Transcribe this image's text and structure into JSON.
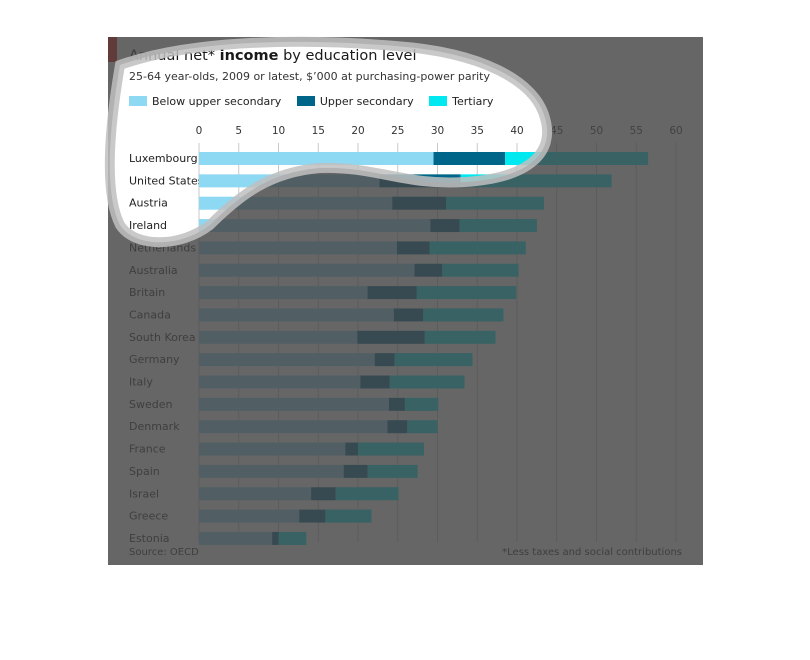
{
  "chart_data": {
    "type": "bar",
    "stacked": true,
    "orientation": "horizontal",
    "title_plain": "Annual net* ",
    "title_bold": "income",
    "title_rest": " by education level",
    "subtitle": "25-64 year-olds, 2009 or latest, $’000 at purchasing-power parity",
    "categories": [
      "Luxembourg",
      "United States",
      "Austria",
      "Ireland",
      "Netherlands",
      "Australia",
      "Britain",
      "Canada",
      "South Korea",
      "Germany",
      "Italy",
      "Sweden",
      "Denmark",
      "France",
      "Spain",
      "Israel",
      "Greece",
      "Estonia"
    ],
    "series": [
      {
        "name": "Below upper secondary",
        "color": "#8dd8f3",
        "values": [
          29.5,
          22.7,
          24.3,
          29.1,
          24.9,
          27.1,
          21.2,
          24.5,
          19.9,
          22.1,
          20.3,
          23.9,
          23.7,
          18.4,
          18.2,
          14.1,
          12.6,
          9.2
        ]
      },
      {
        "name": "Upper secondary",
        "color": "#006689",
        "values": [
          9.0,
          10.2,
          6.8,
          3.7,
          4.1,
          3.5,
          6.2,
          3.7,
          8.5,
          2.5,
          3.7,
          2.0,
          2.5,
          1.6,
          3.0,
          3.1,
          3.3,
          0.8
        ]
      },
      {
        "name": "Tertiary",
        "color": "#00e8f0",
        "values": [
          18.0,
          19.0,
          12.3,
          9.7,
          12.1,
          9.6,
          12.5,
          10.1,
          8.9,
          9.8,
          9.4,
          4.2,
          3.8,
          8.3,
          6.3,
          7.9,
          5.8,
          3.5
        ]
      }
    ],
    "xticks": [
      0,
      5,
      10,
      15,
      20,
      25,
      30,
      35,
      40,
      45,
      50,
      55,
      60
    ],
    "xlim": [
      0,
      60
    ],
    "grid": true,
    "legend_position": "top-left"
  },
  "source": "Source: OECD",
  "footnote": "*Less taxes and social contributions",
  "colors": {
    "accent_red": "#e3120b",
    "shade": "#444444",
    "highlight_ring": "#c0c0c0"
  }
}
